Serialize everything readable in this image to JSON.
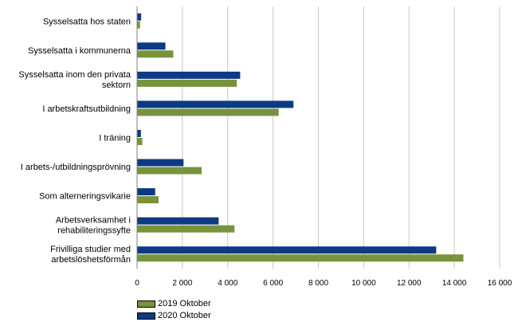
{
  "chart_data": {
    "type": "bar",
    "orientation": "horizontal",
    "categories": [
      [
        "Sysselsatta hos staten"
      ],
      [
        "Sysselsatta i kommunerna"
      ],
      [
        "Sysselsatta inom den privata",
        "sektorn"
      ],
      [
        "I arbetskraftsutbildning"
      ],
      [
        "I träning"
      ],
      [
        "I arbets-/utbildningsprövning"
      ],
      [
        "Som alterneringsvikarie"
      ],
      [
        "Arbetsverksamhet i",
        "rehabiliteringssyfte"
      ],
      [
        "Frivilliga studier med",
        "arbetslöshetsförmån"
      ]
    ],
    "series": [
      {
        "name": "2020 Oktober",
        "color": "#0d3a83",
        "values": [
          180,
          1250,
          4550,
          6900,
          170,
          2050,
          800,
          3600,
          13200
        ]
      },
      {
        "name": "2019 Oktober",
        "color": "#77933c",
        "values": [
          130,
          1600,
          4400,
          6250,
          230,
          2850,
          950,
          4300,
          14400
        ]
      }
    ],
    "xlim": [
      0,
      16000
    ],
    "x_ticks": [
      0,
      2000,
      4000,
      6000,
      8000,
      10000,
      12000,
      14000,
      16000
    ],
    "x_tick_labels": [
      "0",
      "2 000",
      "4 000",
      "6 000",
      "8 000",
      "10 000",
      "12 000",
      "14 000",
      "16 000"
    ],
    "grid": "vertical",
    "legend": [
      {
        "name": "2019 Oktober",
        "color": "#77933c"
      },
      {
        "name": "2020 Oktober",
        "color": "#0d3a83"
      }
    ],
    "legend_position": "bottom-left"
  }
}
